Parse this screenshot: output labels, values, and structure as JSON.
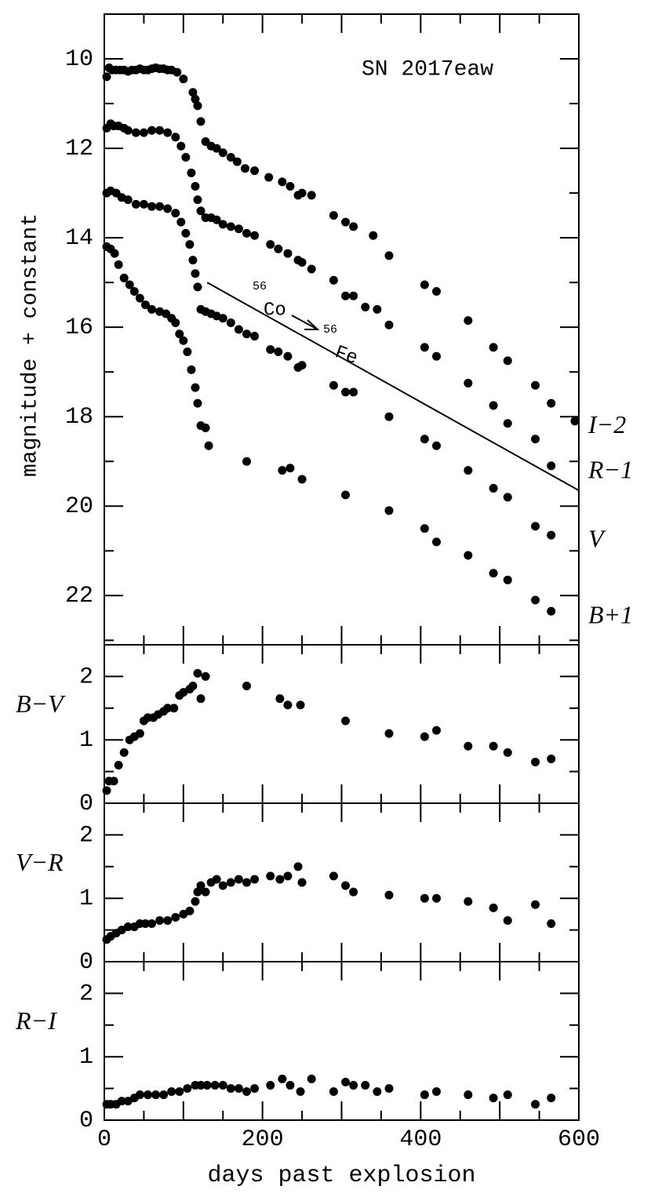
{
  "chart_data": [
    {
      "type": "scatter",
      "title": "SN 2017eaw",
      "ylabel": "magnitude + constant",
      "y_inverted": true,
      "xlim": [
        0,
        600
      ],
      "ylim": [
        9.0,
        23.1
      ],
      "yticks": [
        10,
        12,
        14,
        16,
        18,
        20,
        22
      ],
      "yminorticks": [
        11,
        13,
        15,
        17,
        19,
        21,
        23
      ],
      "decay_line": {
        "x": [
          130,
          600
        ],
        "y": [
          15.0,
          19.65
        ],
        "from_mass": "56",
        "from": "Co",
        "to_mass": "56",
        "to": "Fe"
      },
      "series": [
        {
          "name": "I−2",
          "color": "#000000",
          "x": [
            3,
            6,
            10,
            15,
            20,
            25,
            30,
            35,
            40,
            45,
            50,
            55,
            60,
            65,
            70,
            75,
            80,
            85,
            92,
            100,
            112,
            115,
            118,
            122,
            128,
            135,
            142,
            150,
            160,
            168,
            178,
            190,
            208,
            225,
            235,
            245,
            250,
            262,
            290,
            305,
            315,
            340,
            360,
            405,
            420,
            460,
            492,
            510,
            545,
            565,
            595
          ],
          "values": [
            10.4,
            10.2,
            10.25,
            10.25,
            10.25,
            10.25,
            10.28,
            10.25,
            10.25,
            10.22,
            10.25,
            10.25,
            10.22,
            10.2,
            10.22,
            10.22,
            10.25,
            10.25,
            10.3,
            10.45,
            10.75,
            10.9,
            11.05,
            11.4,
            11.85,
            11.95,
            12.0,
            12.1,
            12.2,
            12.3,
            12.45,
            12.5,
            12.65,
            12.75,
            12.85,
            13.05,
            13.0,
            13.05,
            13.5,
            13.65,
            13.75,
            13.95,
            14.4,
            15.05,
            15.2,
            15.85,
            16.45,
            16.75,
            17.3,
            17.7,
            18.1
          ]
        },
        {
          "name": "R−1",
          "color": "#000000",
          "x": [
            3,
            8,
            12,
            18,
            25,
            30,
            40,
            50,
            60,
            70,
            80,
            90,
            97,
            103,
            110,
            115,
            118,
            122,
            128,
            135,
            142,
            150,
            160,
            170,
            180,
            190,
            210,
            220,
            232,
            245,
            250,
            262,
            290,
            305,
            315,
            330,
            345,
            360,
            405,
            420,
            460,
            492,
            510,
            545,
            565
          ],
          "values": [
            11.55,
            11.45,
            11.5,
            11.5,
            11.55,
            11.6,
            11.65,
            11.65,
            11.6,
            11.6,
            11.65,
            11.75,
            11.95,
            12.2,
            12.55,
            12.85,
            13.15,
            13.4,
            13.55,
            13.55,
            13.6,
            13.7,
            13.75,
            13.8,
            13.9,
            13.95,
            14.15,
            14.25,
            14.35,
            14.5,
            14.55,
            14.7,
            14.95,
            15.3,
            15.3,
            15.55,
            15.6,
            15.95,
            16.45,
            16.65,
            17.25,
            17.75,
            18.15,
            18.5,
            19.1
          ]
        },
        {
          "name": "V",
          "color": "#000000",
          "x": [
            3,
            8,
            15,
            22,
            30,
            40,
            50,
            60,
            70,
            80,
            90,
            97,
            103,
            108,
            112,
            115,
            118,
            122,
            128,
            135,
            142,
            150,
            160,
            170,
            180,
            190,
            210,
            220,
            232,
            245,
            250,
            290,
            305,
            315,
            360,
            405,
            420,
            460,
            492,
            510,
            545,
            565
          ],
          "values": [
            13.0,
            12.95,
            13.0,
            13.1,
            13.15,
            13.25,
            13.25,
            13.3,
            13.3,
            13.35,
            13.45,
            13.65,
            13.9,
            14.15,
            14.5,
            14.8,
            15.1,
            15.6,
            15.65,
            15.7,
            15.75,
            15.8,
            15.9,
            16.05,
            16.15,
            16.2,
            16.5,
            16.55,
            16.65,
            16.9,
            16.85,
            17.3,
            17.45,
            17.45,
            18.0,
            18.5,
            18.65,
            19.2,
            19.6,
            19.8,
            20.45,
            20.65
          ]
        },
        {
          "name": "B+1",
          "color": "#000000",
          "x": [
            3,
            8,
            13,
            18,
            25,
            32,
            38,
            45,
            52,
            60,
            70,
            78,
            85,
            90,
            95,
            100,
            105,
            110,
            115,
            118,
            122,
            128,
            132,
            180,
            225,
            235,
            250,
            305,
            360,
            405,
            420,
            460,
            492,
            510,
            545,
            565
          ],
          "values": [
            14.2,
            14.25,
            14.35,
            14.6,
            14.9,
            15.05,
            15.2,
            15.35,
            15.5,
            15.6,
            15.65,
            15.7,
            15.8,
            15.9,
            16.15,
            16.3,
            16.55,
            16.95,
            17.35,
            17.7,
            18.2,
            18.25,
            18.65,
            19.0,
            19.2,
            19.15,
            19.4,
            19.75,
            20.1,
            20.5,
            20.8,
            21.1,
            21.5,
            21.65,
            22.1,
            22.35
          ]
        }
      ]
    },
    {
      "type": "scatter",
      "xlim": [
        0,
        600
      ],
      "ylim": [
        0,
        2.5
      ],
      "yticks": [
        0,
        1,
        2
      ],
      "yminorticks": [
        0.5,
        1.5
      ],
      "series": [
        {
          "name": "B−V",
          "color": "#000000",
          "x": [
            3,
            6,
            12,
            18,
            25,
            32,
            38,
            45,
            50,
            55,
            62,
            68,
            75,
            80,
            88,
            95,
            100,
            108,
            112,
            118,
            122,
            128,
            180,
            222,
            232,
            248,
            305,
            360,
            405,
            420,
            460,
            492,
            510,
            545,
            565
          ],
          "values": [
            0.2,
            0.35,
            0.35,
            0.6,
            0.8,
            1.0,
            1.05,
            1.1,
            1.3,
            1.35,
            1.35,
            1.4,
            1.45,
            1.5,
            1.5,
            1.7,
            1.75,
            1.8,
            1.85,
            2.05,
            1.65,
            2.0,
            1.85,
            1.65,
            1.55,
            1.55,
            1.3,
            1.1,
            1.05,
            1.15,
            0.9,
            0.9,
            0.8,
            0.65,
            0.7
          ]
        }
      ]
    },
    {
      "type": "scatter",
      "xlim": [
        0,
        600
      ],
      "ylim": [
        0,
        2.5
      ],
      "yticks": [
        0,
        1,
        2
      ],
      "yminorticks": [
        0.5,
        1.5
      ],
      "series": [
        {
          "name": "V−R",
          "color": "#000000",
          "x": [
            3,
            8,
            15,
            22,
            30,
            38,
            45,
            52,
            60,
            70,
            80,
            90,
            100,
            108,
            115,
            118,
            122,
            128,
            135,
            142,
            150,
            160,
            170,
            180,
            190,
            210,
            222,
            232,
            245,
            250,
            290,
            305,
            315,
            360,
            405,
            420,
            460,
            492,
            510,
            545,
            565
          ],
          "values": [
            0.35,
            0.4,
            0.45,
            0.5,
            0.55,
            0.55,
            0.6,
            0.6,
            0.6,
            0.65,
            0.65,
            0.7,
            0.75,
            0.8,
            0.95,
            1.1,
            1.2,
            1.1,
            1.25,
            1.3,
            1.2,
            1.25,
            1.3,
            1.25,
            1.3,
            1.35,
            1.3,
            1.35,
            1.5,
            1.25,
            1.35,
            1.2,
            1.1,
            1.05,
            1.0,
            1.0,
            0.95,
            0.85,
            0.65,
            0.9,
            0.6
          ]
        }
      ]
    },
    {
      "type": "scatter",
      "xlabel": "days past explosion",
      "xlim": [
        0,
        600
      ],
      "xticks": [
        0,
        200,
        400,
        600
      ],
      "xminorticks": [
        50,
        100,
        150,
        250,
        300,
        350,
        450,
        500,
        550
      ],
      "ylim": [
        0,
        2.5
      ],
      "yticks": [
        0,
        1,
        2
      ],
      "yminorticks": [
        0.5,
        1.5
      ],
      "series": [
        {
          "name": "R−I",
          "color": "#000000",
          "x": [
            3,
            8,
            15,
            22,
            30,
            38,
            45,
            55,
            65,
            75,
            85,
            95,
            105,
            115,
            122,
            130,
            140,
            150,
            160,
            170,
            180,
            190,
            210,
            225,
            235,
            248,
            262,
            290,
            305,
            315,
            330,
            345,
            360,
            405,
            420,
            460,
            492,
            510,
            545,
            565
          ],
          "values": [
            0.25,
            0.25,
            0.25,
            0.3,
            0.3,
            0.35,
            0.4,
            0.4,
            0.4,
            0.4,
            0.45,
            0.45,
            0.5,
            0.55,
            0.55,
            0.55,
            0.55,
            0.55,
            0.5,
            0.5,
            0.45,
            0.5,
            0.55,
            0.65,
            0.55,
            0.45,
            0.65,
            0.45,
            0.6,
            0.55,
            0.55,
            0.45,
            0.5,
            0.4,
            0.45,
            0.4,
            0.35,
            0.4,
            0.25,
            0.35
          ]
        }
      ]
    }
  ]
}
